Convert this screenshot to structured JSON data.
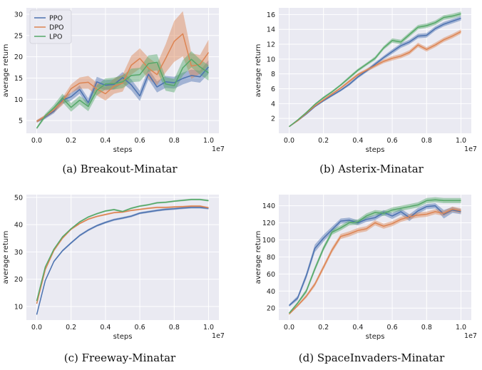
{
  "colors": {
    "background": "#eaeaf2",
    "grid": "#ffffff",
    "PPO": "#4c72b0",
    "DPO": "#dd8452",
    "LPO": "#55a868"
  },
  "chart_data": [
    {
      "type": "line",
      "caption": "(a) Breakout-Minatar",
      "xlabel": "steps",
      "ylabel": "average return",
      "x_offset_label": "1e7",
      "xlim": [
        -0.06,
        1.06
      ],
      "ylim": [
        2,
        31.5
      ],
      "xticks": [
        0.0,
        0.2,
        0.4,
        0.6,
        0.8,
        1.0
      ],
      "xtick_labels": [
        "0.0",
        "0.2",
        "0.4",
        "0.6",
        "0.8",
        "1.0"
      ],
      "yticks": [
        5,
        10,
        15,
        20,
        25,
        30
      ],
      "ytick_labels": [
        "5",
        "10",
        "15",
        "20",
        "25",
        "30"
      ],
      "grid": true,
      "legend": {
        "position": "top-left",
        "entries": [
          "PPO",
          "DPO",
          "LPO"
        ]
      },
      "x": [
        0.0,
        0.05,
        0.1,
        0.15,
        0.2,
        0.25,
        0.3,
        0.35,
        0.4,
        0.45,
        0.5,
        0.55,
        0.6,
        0.65,
        0.7,
        0.75,
        0.8,
        0.85,
        0.9,
        0.95,
        1.0
      ],
      "series": [
        {
          "name": "PPO",
          "mean": [
            4.8,
            5.8,
            7.2,
            9.8,
            10.6,
            12.3,
            9.2,
            14.1,
            13.3,
            13.5,
            15.1,
            13.4,
            10.8,
            15.9,
            12.9,
            14.1,
            13.9,
            14.9,
            15.6,
            15.3,
            17.6
          ],
          "spread": [
            0.3,
            0.4,
            0.5,
            0.9,
            0.9,
            1.0,
            1.0,
            1.2,
            1.2,
            1.2,
            1.3,
            1.3,
            1.2,
            1.3,
            1.3,
            1.4,
            1.4,
            1.4,
            1.4,
            1.4,
            1.6
          ]
        },
        {
          "name": "DPO",
          "mean": [
            4.8,
            6.0,
            7.5,
            9.5,
            12.5,
            13.8,
            14.0,
            12.4,
            11.3,
            13.1,
            13.8,
            18.0,
            19.6,
            17.3,
            15.8,
            19.6,
            23.6,
            25.4,
            17.8,
            18.2,
            21.0
          ],
          "spread": [
            0.3,
            0.4,
            0.6,
            0.9,
            1.0,
            1.3,
            1.5,
            1.5,
            1.6,
            1.8,
            2.0,
            2.2,
            2.4,
            2.5,
            2.5,
            3.3,
            4.8,
            5.3,
            3.0,
            2.2,
            3.0
          ]
        },
        {
          "name": "LPO",
          "mean": [
            3.2,
            6.1,
            8.0,
            10.3,
            8.1,
            9.8,
            8.3,
            12.1,
            13.6,
            13.7,
            14.1,
            15.6,
            15.8,
            18.4,
            18.7,
            13.6,
            13.2,
            17.4,
            19.4,
            17.6,
            16.2
          ],
          "spread": [
            0.3,
            0.5,
            0.7,
            1.0,
            1.0,
            1.0,
            1.1,
            1.2,
            1.3,
            1.4,
            1.5,
            1.6,
            1.6,
            1.9,
            1.9,
            1.6,
            1.6,
            1.8,
            1.9,
            1.8,
            1.8
          ]
        }
      ]
    },
    {
      "type": "line",
      "caption": "(b) Asterix-Minatar",
      "xlabel": "steps",
      "ylabel": "average return",
      "x_offset_label": "1e7",
      "xlim": [
        -0.06,
        1.06
      ],
      "ylim": [
        0.0,
        16.9
      ],
      "xticks": [
        0.0,
        0.2,
        0.4,
        0.6,
        0.8,
        1.0
      ],
      "xtick_labels": [
        "0.0",
        "0.2",
        "0.4",
        "0.6",
        "0.8",
        "1.0"
      ],
      "yticks": [
        2,
        4,
        6,
        8,
        10,
        12,
        14,
        16
      ],
      "ytick_labels": [
        "2",
        "4",
        "6",
        "8",
        "10",
        "12",
        "14",
        "16"
      ],
      "grid": true,
      "x": [
        0.0,
        0.05,
        0.1,
        0.15,
        0.2,
        0.25,
        0.3,
        0.35,
        0.4,
        0.45,
        0.5,
        0.55,
        0.6,
        0.65,
        0.7,
        0.75,
        0.8,
        0.85,
        0.9,
        0.95,
        1.0
      ],
      "series": [
        {
          "name": "PPO",
          "mean": [
            0.9,
            1.7,
            2.6,
            3.6,
            4.4,
            5.1,
            5.8,
            6.6,
            7.6,
            8.4,
            9.3,
            10.2,
            11.0,
            11.8,
            12.3,
            13.1,
            13.2,
            14.1,
            14.7,
            15.1,
            15.5
          ],
          "spread": [
            0.05,
            0.1,
            0.1,
            0.1,
            0.15,
            0.15,
            0.15,
            0.2,
            0.2,
            0.2,
            0.25,
            0.25,
            0.3,
            0.3,
            0.3,
            0.3,
            0.3,
            0.3,
            0.3,
            0.3,
            0.3
          ]
        },
        {
          "name": "DPO",
          "mean": [
            0.9,
            1.7,
            2.7,
            3.7,
            4.5,
            5.3,
            6.1,
            7.0,
            7.9,
            8.5,
            9.1,
            9.7,
            10.1,
            10.4,
            10.9,
            11.9,
            11.3,
            11.9,
            12.6,
            13.1,
            13.7
          ],
          "spread": [
            0.05,
            0.1,
            0.1,
            0.1,
            0.15,
            0.15,
            0.15,
            0.2,
            0.2,
            0.2,
            0.25,
            0.25,
            0.3,
            0.3,
            0.3,
            0.3,
            0.3,
            0.3,
            0.3,
            0.3,
            0.3
          ]
        },
        {
          "name": "LPO",
          "mean": [
            0.9,
            1.8,
            2.8,
            3.9,
            4.8,
            5.6,
            6.5,
            7.5,
            8.5,
            9.3,
            10.1,
            11.5,
            12.5,
            12.3,
            13.3,
            14.3,
            14.5,
            14.9,
            15.6,
            15.8,
            16.1
          ],
          "spread": [
            0.05,
            0.1,
            0.1,
            0.1,
            0.15,
            0.15,
            0.15,
            0.2,
            0.2,
            0.2,
            0.25,
            0.25,
            0.3,
            0.3,
            0.3,
            0.3,
            0.3,
            0.3,
            0.3,
            0.3,
            0.3
          ]
        }
      ]
    },
    {
      "type": "line",
      "caption": "(c) Freeway-Minatar",
      "xlabel": "steps",
      "ylabel": "average return",
      "x_offset_label": "1e7",
      "xlim": [
        -0.06,
        1.06
      ],
      "ylim": [
        5.0,
        51.0
      ],
      "xticks": [
        0.0,
        0.2,
        0.4,
        0.6,
        0.8,
        1.0
      ],
      "xtick_labels": [
        "0.0",
        "0.2",
        "0.4",
        "0.6",
        "0.8",
        "1.0"
      ],
      "yticks": [
        10,
        20,
        30,
        40,
        50
      ],
      "ytick_labels": [
        "10",
        "20",
        "30",
        "40",
        "50"
      ],
      "grid": true,
      "x": [
        0.0,
        0.05,
        0.1,
        0.15,
        0.2,
        0.25,
        0.3,
        0.35,
        0.4,
        0.45,
        0.5,
        0.55,
        0.6,
        0.65,
        0.7,
        0.75,
        0.8,
        0.85,
        0.9,
        0.95,
        1.0
      ],
      "series": [
        {
          "name": "PPO",
          "mean": [
            7.0,
            19.5,
            26.5,
            30.4,
            33.3,
            36.0,
            38.0,
            39.6,
            40.8,
            41.8,
            42.4,
            43.1,
            44.2,
            44.7,
            45.2,
            45.6,
            45.8,
            46.1,
            46.3,
            46.3,
            46.0
          ],
          "spread": [
            0.3,
            0.4,
            0.4,
            0.4,
            0.4,
            0.4,
            0.4,
            0.4,
            0.4,
            0.4,
            0.4,
            0.4,
            0.4,
            0.4,
            0.4,
            0.4,
            0.4,
            0.4,
            0.4,
            0.4,
            0.4
          ]
        },
        {
          "name": "DPO",
          "mean": [
            11.0,
            23.5,
            30.5,
            35.0,
            38.3,
            40.4,
            42.0,
            43.0,
            43.7,
            44.4,
            44.6,
            45.2,
            45.6,
            46.0,
            46.3,
            46.3,
            46.5,
            46.6,
            46.8,
            46.8,
            46.2
          ],
          "spread": [
            0.3,
            0.3,
            0.3,
            0.3,
            0.3,
            0.3,
            0.3,
            0.3,
            0.3,
            0.3,
            0.3,
            0.3,
            0.3,
            0.3,
            0.3,
            0.3,
            0.3,
            0.3,
            0.3,
            0.3,
            0.3
          ]
        },
        {
          "name": "LPO",
          "mean": [
            12.0,
            24.5,
            31.0,
            35.5,
            38.5,
            41.0,
            42.8,
            44.0,
            45.0,
            45.5,
            44.8,
            46.0,
            46.8,
            47.3,
            48.0,
            48.2,
            48.6,
            48.9,
            49.2,
            49.2,
            48.8
          ],
          "spread": [
            0.3,
            0.3,
            0.3,
            0.3,
            0.3,
            0.3,
            0.3,
            0.3,
            0.3,
            0.3,
            0.3,
            0.3,
            0.3,
            0.3,
            0.3,
            0.3,
            0.3,
            0.3,
            0.3,
            0.3,
            0.3
          ]
        }
      ]
    },
    {
      "type": "line",
      "caption": "(d) SpaceInvaders-Minatar",
      "xlabel": "steps",
      "ylabel": "average return",
      "x_offset_label": "1e7",
      "xlim": [
        -0.06,
        1.06
      ],
      "ylim": [
        6.0,
        153.0
      ],
      "xticks": [
        0.0,
        0.2,
        0.4,
        0.6,
        0.8,
        1.0
      ],
      "xtick_labels": [
        "0.0",
        "0.2",
        "0.4",
        "0.6",
        "0.8",
        "1.0"
      ],
      "yticks": [
        20,
        40,
        60,
        80,
        100,
        120,
        140
      ],
      "ytick_labels": [
        "20",
        "40",
        "60",
        "80",
        "100",
        "120",
        "140"
      ],
      "grid": true,
      "x": [
        0.0,
        0.05,
        0.1,
        0.15,
        0.2,
        0.25,
        0.3,
        0.35,
        0.4,
        0.45,
        0.5,
        0.55,
        0.6,
        0.65,
        0.7,
        0.75,
        0.8,
        0.85,
        0.9,
        0.95,
        1.0
      ],
      "series": [
        {
          "name": "PPO",
          "mean": [
            23.0,
            32.0,
            58.0,
            90.0,
            102.0,
            112.0,
            122.0,
            123.0,
            120.0,
            124.0,
            126.0,
            132.0,
            128.0,
            133.0,
            126.0,
            134.0,
            139.0,
            140.0,
            130.0,
            135.0,
            133.0
          ],
          "spread": [
            1.5,
            2.5,
            3.5,
            4.5,
            4.0,
            3.5,
            3.0,
            3.0,
            3.0,
            3.0,
            3.0,
            3.0,
            3.5,
            3.5,
            4.0,
            3.5,
            3.0,
            3.0,
            5.0,
            3.5,
            3.0
          ]
        },
        {
          "name": "DPO",
          "mean": [
            13.0,
            23.0,
            34.0,
            48.0,
            68.0,
            88.0,
            104.0,
            107.0,
            111.0,
            113.0,
            120.0,
            116.0,
            119.0,
            124.0,
            127.0,
            129.0,
            130.0,
            133.0,
            131.0,
            136.0,
            134.0
          ],
          "spread": [
            1.0,
            1.5,
            2.0,
            2.5,
            3.0,
            3.0,
            3.0,
            3.0,
            3.0,
            3.0,
            3.0,
            3.0,
            3.0,
            3.0,
            3.0,
            3.0,
            3.0,
            3.0,
            3.0,
            3.0,
            3.0
          ]
        },
        {
          "name": "LPO",
          "mean": [
            14.0,
            26.0,
            40.0,
            66.0,
            90.0,
            109.0,
            114.0,
            120.0,
            121.0,
            128.0,
            132.0,
            131.0,
            135.0,
            137.0,
            139.0,
            141.0,
            146.0,
            147.0,
            146.0,
            146.0,
            146.0
          ],
          "spread": [
            1.0,
            1.5,
            2.5,
            3.0,
            3.0,
            3.0,
            3.0,
            3.0,
            3.0,
            3.0,
            3.0,
            3.0,
            3.0,
            3.0,
            3.0,
            3.0,
            3.0,
            3.0,
            3.0,
            3.0,
            3.0
          ]
        }
      ]
    }
  ]
}
